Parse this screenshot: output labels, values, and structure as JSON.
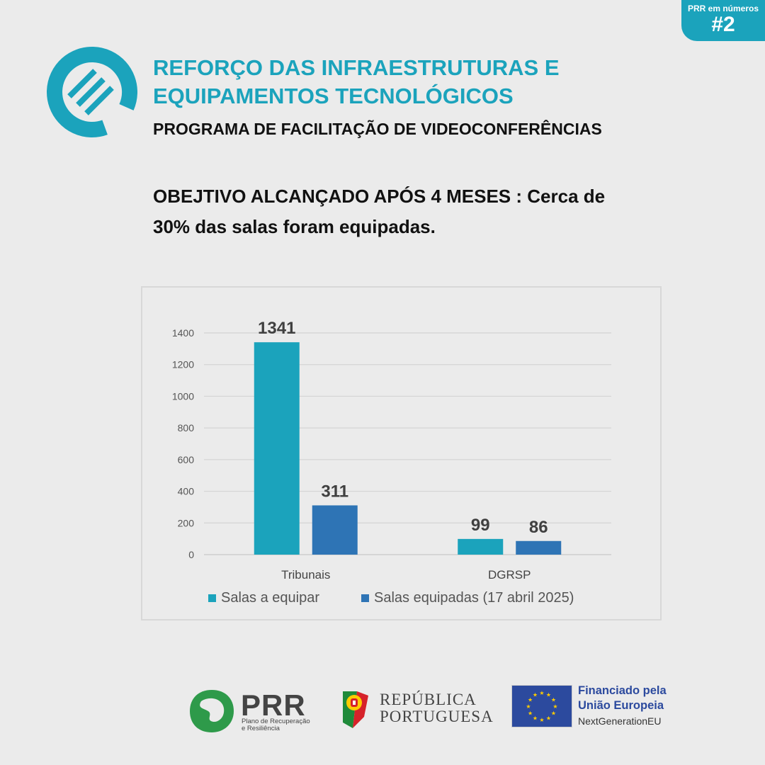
{
  "badge": {
    "line1": "PRR em números",
    "line2": "#2"
  },
  "header": {
    "title_line1": "REFORÇO DAS INFRAESTRUTURAS E",
    "title_line2": "EQUIPAMENTOS TECNOLÓGICOS",
    "subtitle": "PROGRAMA DE FACILITAÇÃO DE VIDEOCONFERÊNCIAS"
  },
  "objective": {
    "line1": "OBEJTIVO ALCANÇADO APÓS 4 MESES : Cerca de",
    "line2": "30% das salas foram equipadas."
  },
  "colors": {
    "accent": "#1ba3bc",
    "series2": "#2e74b5",
    "eu_blue": "#2c4a9e",
    "star": "#ffcc00"
  },
  "chart_data": {
    "type": "bar",
    "categories": [
      "Tribunais",
      "DGRSP"
    ],
    "series": [
      {
        "name": "Salas a equipar",
        "values": [
          1341,
          99
        ],
        "color": "#1ba3bc"
      },
      {
        "name": "Salas equipadas (17 abril 2025)",
        "values": [
          311,
          86
        ],
        "color": "#2e74b5"
      }
    ],
    "ylim": [
      0,
      1400
    ],
    "yticks": [
      0,
      200,
      400,
      600,
      800,
      1000,
      1200,
      1400
    ],
    "grid": true,
    "legend": "bottom"
  },
  "footer": {
    "prr_name": "PRR",
    "prr_sub_line1": "Plano de Recuperação",
    "prr_sub_line2": "e Resiliência",
    "republic_line1": "REPÚBLICA",
    "republic_line2": "PORTUGUESA",
    "eu_line1": "Financiado pela",
    "eu_line2": "União Europeia",
    "eu_sub": "NextGenerationEU"
  }
}
